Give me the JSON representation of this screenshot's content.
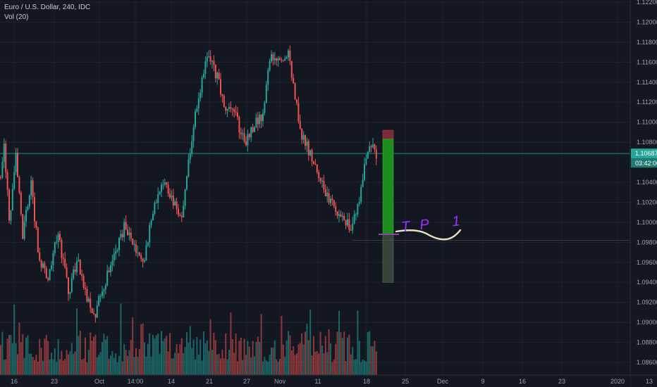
{
  "legend": {
    "title": "Euro / U.S. Dollar, 240, IDC",
    "indicator": "Vol (20)"
  },
  "price_axis": {
    "current_price": "1.10687",
    "countdown": "03:42:06"
  },
  "colors": {
    "background": "#131722",
    "grid": "#1e222d",
    "up": "#26a69a",
    "down": "#ef5350",
    "current_price_line": "#26a69a",
    "target_zone": "#1e8c1e",
    "stop_zone": "#7a2b37",
    "entry_line": "#8e44ad",
    "drawing": "#e8e0c0"
  },
  "annotation": {
    "text": "TP 1",
    "color": "#9b30ff"
  },
  "chart_data": {
    "type": "candlestick",
    "instrument": "EURUSD",
    "timeframe": "240",
    "ylim": [
      1.085,
      1.122
    ],
    "y_ticks": [
      "1.12200",
      "1.12000",
      "1.11800",
      "1.11600",
      "1.11400",
      "1.11200",
      "1.11000",
      "1.10800",
      "1.10400",
      "1.10200",
      "1.10000",
      "1.09800",
      "1.09600",
      "1.09400",
      "1.09200",
      "1.09000",
      "1.08800",
      "1.08600"
    ],
    "x_ticks": [
      "16",
      "23",
      "Oct",
      "14:00",
      "14",
      "21",
      "27",
      "Nov",
      "11",
      "18",
      "25",
      "Dec",
      "9",
      "16",
      "23",
      "2020",
      "13"
    ],
    "waypoints": [
      [
        0,
        1.1045
      ],
      [
        6,
        1.1075
      ],
      [
        14,
        1.0995
      ],
      [
        22,
        1.107
      ],
      [
        32,
        1.0985
      ],
      [
        44,
        1.104
      ],
      [
        56,
        1.096
      ],
      [
        70,
        1.0945
      ],
      [
        82,
        1.099
      ],
      [
        98,
        1.093
      ],
      [
        110,
        1.0965
      ],
      [
        124,
        1.092
      ],
      [
        136,
        1.091
      ],
      [
        146,
        1.0935
      ],
      [
        160,
        1.096
      ],
      [
        176,
        1.0995
      ],
      [
        190,
        1.0975
      ],
      [
        204,
        1.096
      ],
      [
        218,
        1.1015
      ],
      [
        232,
        1.1045
      ],
      [
        246,
        1.102
      ],
      [
        256,
        1.1
      ],
      [
        266,
        1.105
      ],
      [
        278,
        1.111
      ],
      [
        288,
        1.115
      ],
      [
        296,
        1.117
      ],
      [
        308,
        1.1145
      ],
      [
        320,
        1.1115
      ],
      [
        334,
        1.1105
      ],
      [
        348,
        1.108
      ],
      [
        360,
        1.1095
      ],
      [
        374,
        1.111
      ],
      [
        384,
        1.117
      ],
      [
        396,
        1.116
      ],
      [
        408,
        1.117
      ],
      [
        418,
        1.113
      ],
      [
        428,
        1.1085
      ],
      [
        440,
        1.107
      ],
      [
        454,
        1.104
      ],
      [
        466,
        1.1025
      ],
      [
        480,
        1.101
      ],
      [
        492,
        1.1
      ],
      [
        500,
        1.0995
      ],
      [
        512,
        1.103
      ],
      [
        520,
        1.107
      ],
      [
        528,
        1.108
      ],
      [
        534,
        1.1069
      ]
    ],
    "last_price": 1.10687,
    "position_tool": {
      "entry": 1.0988,
      "target": 1.1083,
      "target_cap": 1.1092,
      "stop": 1.094
    }
  }
}
